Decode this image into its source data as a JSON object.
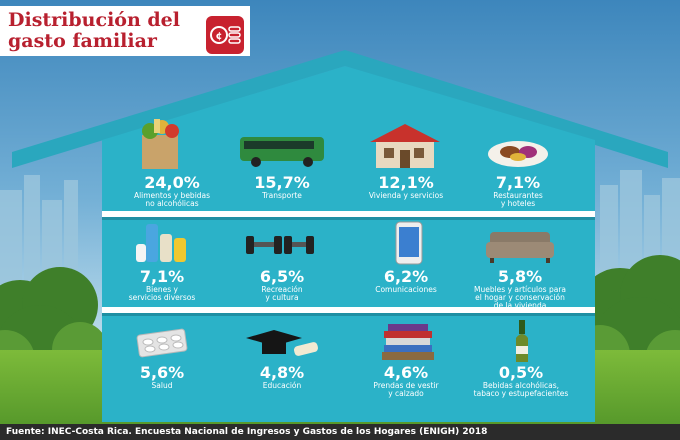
{
  "title_lines": [
    "Distribución del",
    "gasto familiar"
  ],
  "source": "Fuente: INEC-Costa Rica. Encuesta Nacional de Ingresos y Gastos de los Hogares (ENIGH) 2018",
  "colors": {
    "title_red": "#b8202f",
    "house_teal": "#2bb2c8",
    "shelf": "#ffffff",
    "footer": "#2b2b2b"
  },
  "chart_data": {
    "type": "table",
    "unit": "%",
    "items": [
      {
        "pct": "24,0%",
        "value": 24.0,
        "label_lines": [
          "Alimentos y bebidas",
          "no alcohólicas"
        ],
        "icon": "grocery-bag-icon"
      },
      {
        "pct": "15,7%",
        "value": 15.7,
        "label_lines": [
          "Transporte"
        ],
        "icon": "bus-icon"
      },
      {
        "pct": "12,1%",
        "value": 12.1,
        "label_lines": [
          "Vivienda y servicios"
        ],
        "icon": "house-icon"
      },
      {
        "pct": "7,1%",
        "value": 7.1,
        "label_lines": [
          "Restaurantes",
          "y hoteles"
        ],
        "icon": "dinner-plate-icon"
      },
      {
        "pct": "7,1%",
        "value": 7.1,
        "label_lines": [
          "Bienes y",
          "servicios diversos"
        ],
        "icon": "toiletries-icon"
      },
      {
        "pct": "6,5%",
        "value": 6.5,
        "label_lines": [
          "Recreación",
          "y cultura"
        ],
        "icon": "dumbbells-icon"
      },
      {
        "pct": "6,2%",
        "value": 6.2,
        "label_lines": [
          "Comunicaciones"
        ],
        "icon": "smartphone-icon"
      },
      {
        "pct": "5,8%",
        "value": 5.8,
        "label_lines": [
          "Muebles y artículos para",
          "el hogar y conservación",
          "de la vivienda"
        ],
        "icon": "sofa-icon"
      },
      {
        "pct": "5,6%",
        "value": 5.6,
        "label_lines": [
          "Salud"
        ],
        "icon": "pill-blister-icon"
      },
      {
        "pct": "4,8%",
        "value": 4.8,
        "label_lines": [
          "Educación"
        ],
        "icon": "graduation-cap-icon"
      },
      {
        "pct": "4,6%",
        "value": 4.6,
        "label_lines": [
          "Prendas de vestir",
          "y calzado"
        ],
        "icon": "folded-clothes-icon"
      },
      {
        "pct": "0,5%",
        "value": 0.5,
        "label_lines": [
          "Bebidas alcohólicas,",
          "tabaco y estupefacientes"
        ],
        "icon": "bottle-icon"
      }
    ]
  }
}
